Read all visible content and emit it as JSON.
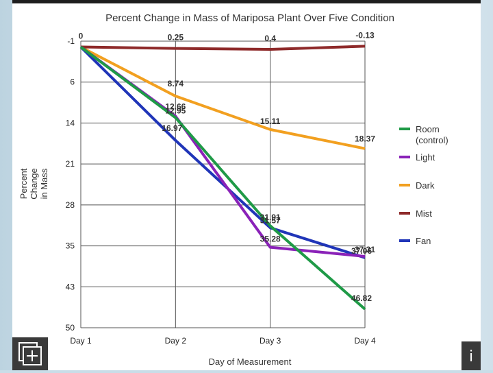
{
  "chart_data": {
    "type": "line",
    "title": "Percent Change in Mass of Mariposa Plant Over Five Condition",
    "xlabel": "Day of Measurement",
    "ylabel": "Percent Change in Mass",
    "categories": [
      "Day 1",
      "Day 2",
      "Day 3",
      "Day 4"
    ],
    "y_ticks": [
      -1,
      6,
      14,
      21,
      28,
      35,
      43,
      50
    ],
    "ylim": [
      -1,
      50
    ],
    "y_inverted": true,
    "grid": true,
    "legend_position": "right",
    "series": [
      {
        "name": "Room (control)",
        "color": "#1f9a47",
        "values": [
          0,
          12.95,
          31.57,
          46.82
        ],
        "labels": [
          "",
          "12.95",
          "31.57",
          "46.82"
        ]
      },
      {
        "name": "Light",
        "color": "#8a22b8",
        "values": [
          0,
          12.66,
          35.28,
          37.06
        ],
        "labels": [
          "",
          "12.66",
          "35.28",
          "37.06"
        ]
      },
      {
        "name": "Dark",
        "color": "#f2a020",
        "values": [
          0,
          8.74,
          15.11,
          18.37
        ],
        "labels": [
          "",
          "8.74",
          "15.11",
          "18.37"
        ]
      },
      {
        "name": "Mist",
        "color": "#8e2a2a",
        "values": [
          0,
          0.25,
          0.4,
          -0.13
        ],
        "labels": [
          "0",
          "0.25",
          "0.4",
          "-0.13"
        ]
      },
      {
        "name": "Fan",
        "color": "#2035b8",
        "values": [
          0,
          16.97,
          31.91,
          37.31
        ],
        "labels": [
          "",
          "16.97",
          "31.91",
          "37.31"
        ]
      }
    ]
  },
  "ui": {
    "info_glyph": "i",
    "expand_icon": "expand-icon"
  }
}
